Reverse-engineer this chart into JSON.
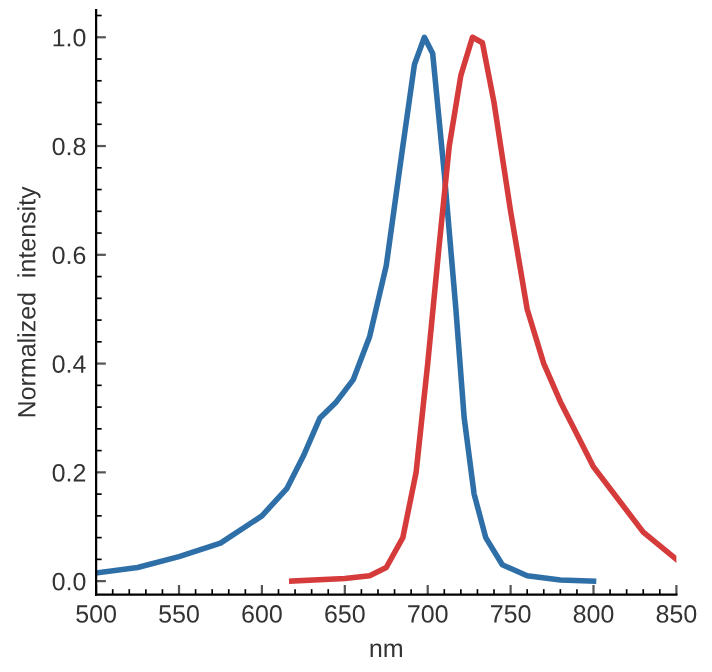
{
  "chart_data": {
    "type": "line",
    "xlabel": "nm",
    "ylabel": "Normalized  intensity",
    "xlim": [
      500,
      850
    ],
    "ylim": [
      -0.025,
      1.05
    ],
    "xticks": [
      500,
      550,
      600,
      650,
      700,
      750,
      800,
      850
    ],
    "yticks": [
      {
        "value": 0,
        "label": "0.0"
      },
      0.2,
      0.4,
      0.6,
      0.8,
      {
        "value": 1,
        "label": "1.0"
      }
    ],
    "grid": false,
    "legend": false,
    "marker": "none",
    "line_style": "solid",
    "series": [
      {
        "color": "#2f6fa8",
        "x": [
          500,
          525,
          550,
          575,
          600,
          615,
          625,
          635,
          645,
          655,
          665,
          675,
          685,
          692,
          698,
          703,
          710,
          717,
          722,
          728,
          735,
          745,
          760,
          780,
          800
        ],
        "values": [
          0.015,
          0.025,
          0.045,
          0.07,
          0.12,
          0.17,
          0.23,
          0.3,
          0.33,
          0.37,
          0.45,
          0.58,
          0.8,
          0.95,
          1.0,
          0.97,
          0.75,
          0.5,
          0.3,
          0.16,
          0.08,
          0.03,
          0.01,
          0.002,
          0.0
        ]
      },
      {
        "color": "#d63b3b",
        "x": [
          618,
          650,
          665,
          675,
          685,
          693,
          700,
          707,
          713,
          720,
          727,
          733,
          740,
          750,
          760,
          770,
          780,
          790,
          800,
          815,
          830,
          850
        ],
        "values": [
          0.0,
          0.005,
          0.01,
          0.025,
          0.08,
          0.2,
          0.4,
          0.62,
          0.8,
          0.93,
          1.0,
          0.99,
          0.88,
          0.68,
          0.5,
          0.4,
          0.33,
          0.27,
          0.21,
          0.15,
          0.09,
          0.04
        ]
      }
    ]
  }
}
